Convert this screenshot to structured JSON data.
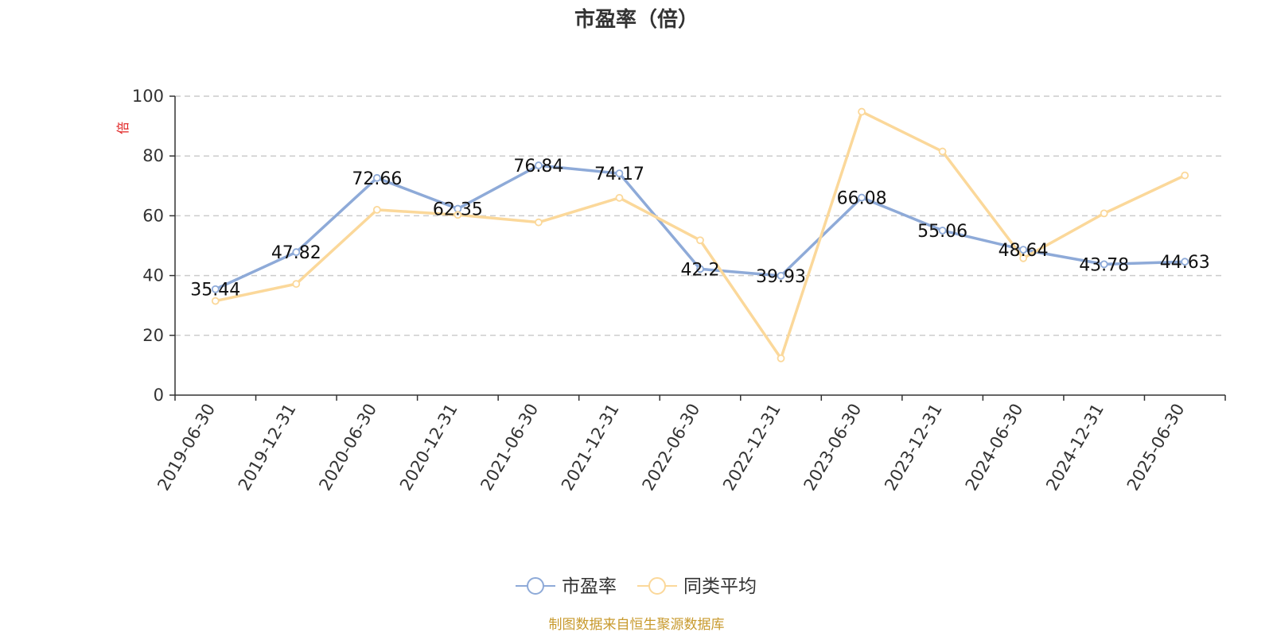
{
  "chart_data": {
    "type": "line",
    "title": "市盈率（倍）",
    "ylabel": "倍",
    "ylim": [
      0,
      100
    ],
    "yticks": [
      0,
      20,
      40,
      60,
      80,
      100
    ],
    "grid": true,
    "legend_position": "bottom",
    "categories": [
      "2019-06-30",
      "2019-12-31",
      "2020-06-30",
      "2020-12-31",
      "2021-06-30",
      "2021-12-31",
      "2022-06-30",
      "2022-12-31",
      "2023-06-30",
      "2023-12-31",
      "2024-06-30",
      "2024-12-31",
      "2025-06-30"
    ],
    "series": [
      {
        "name": "市盈率",
        "color": "#8eaad8",
        "values": [
          35.44,
          47.82,
          72.66,
          62.35,
          76.84,
          74.17,
          42.2,
          39.93,
          66.08,
          55.06,
          48.64,
          43.78,
          44.63
        ],
        "labels": [
          "35.44",
          "47.82",
          "72.66",
          "62.35",
          "76.84",
          "74.17",
          "42.2",
          "39.93",
          "66.08",
          "55.06",
          "48.64",
          "43.78",
          "44.63"
        ]
      },
      {
        "name": "同类平均",
        "color": "#fbd89a",
        "values": [
          31.5,
          37.2,
          62.0,
          60.3,
          57.8,
          66.0,
          51.8,
          12.3,
          94.8,
          81.5,
          45.8,
          60.8,
          73.5
        ]
      }
    ]
  },
  "footer": {
    "source": "制图数据来自恒生聚源数据库"
  }
}
